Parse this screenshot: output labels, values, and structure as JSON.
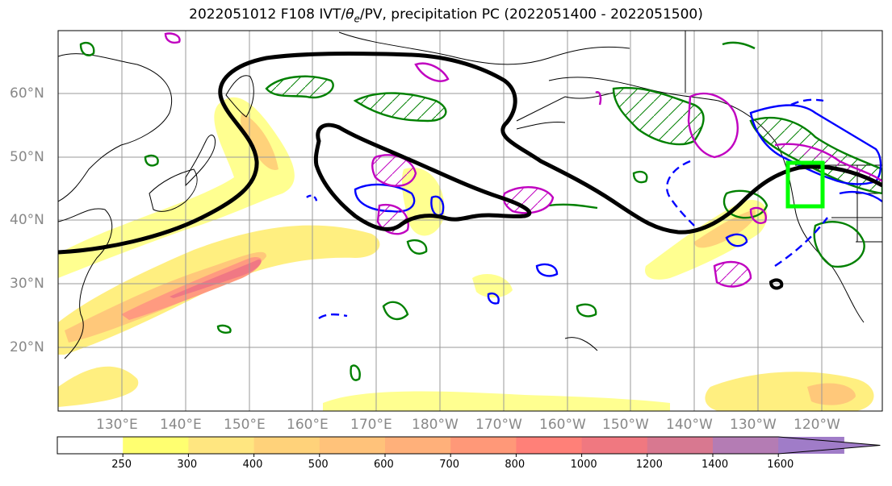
{
  "title": "2022051012 F108 IVT/θe/PV, precipitation PC (2022051400 - 2022051500)",
  "title_parts": {
    "prefix": "2022051012 F108 IVT/",
    "theta": "θ",
    "sub": "e",
    "suffix": "/PV, precipitation PC (2022051400 - 2022051500)"
  },
  "lat_labels": [
    "60°N",
    "50°N",
    "40°N",
    "30°N",
    "20°N"
  ],
  "lon_labels": [
    "130°E",
    "140°E",
    "150°E",
    "160°E",
    "170°E",
    "180°W",
    "170°W",
    "160°W",
    "150°W",
    "140°W",
    "130°W",
    "120°W"
  ],
  "colorbar": {
    "ticks": [
      "250",
      "300",
      "400",
      "500",
      "600",
      "700",
      "800",
      "1000",
      "1200",
      "1400",
      "1600"
    ],
    "colors": [
      "#ffff70",
      "#ffe680",
      "#ffd27a",
      "#ffc27a",
      "#ffb07a",
      "#ff9878",
      "#ff8078",
      "#f07880",
      "#d87890",
      "#b47cb4",
      "#a07cc8"
    ]
  },
  "colors": {
    "ivt_black": "#000000",
    "positive_contour": "#008000",
    "negative_contour": "#0000ff",
    "pv_contour": "#c000c0",
    "highlight_box": "#00ff00"
  }
}
